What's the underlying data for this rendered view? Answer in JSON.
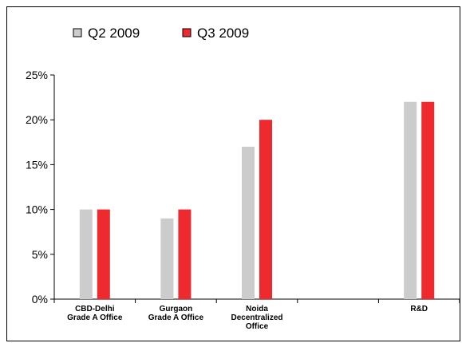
{
  "chart_data": {
    "type": "bar",
    "categories": [
      [
        "CBD-Delhi",
        "Grade A Office"
      ],
      [
        "Gurgaon",
        "Grade A Office"
      ],
      [
        "Noida",
        "Decentralized",
        "Office"
      ],
      [],
      [
        "R&D"
      ]
    ],
    "series": [
      {
        "name": "Q2 2009",
        "color": "#cccccc",
        "values": [
          10,
          9,
          17,
          null,
          22
        ]
      },
      {
        "name": "Q3 2009",
        "color": "#ee2a2e",
        "values": [
          10,
          10,
          20,
          null,
          22
        ]
      }
    ],
    "yticks": [
      "0%",
      "5%",
      "10%",
      "15%",
      "20%",
      "25%"
    ],
    "ylim": [
      0,
      25
    ],
    "title": "",
    "xlabel": "",
    "ylabel": "",
    "legend_position": "top-left",
    "grid": false
  }
}
